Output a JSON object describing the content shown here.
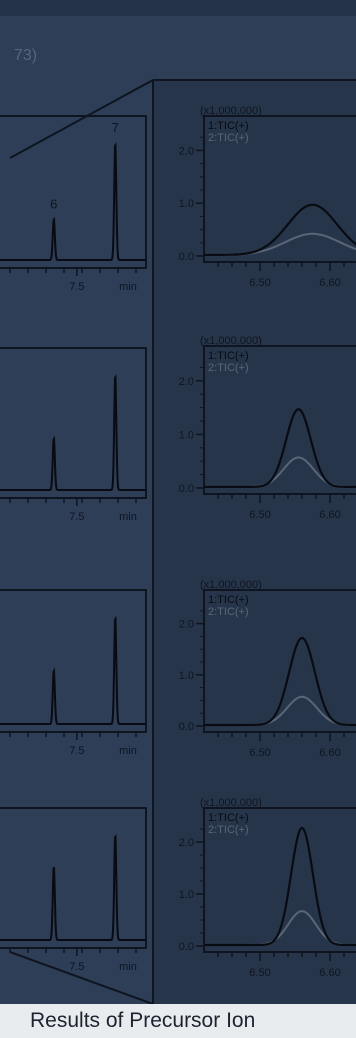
{
  "header_fragment": "73)",
  "caption": "Results of Precursor Ion",
  "colors": {
    "background": "#2e3e57",
    "band": "#27354b",
    "frame": "#0e1520",
    "trace_primary": "#080c12",
    "trace_secondary": "#5a6678",
    "caption_bg": "#e9ecef"
  },
  "chart_data": [
    {
      "type": "line",
      "panel": "overview-1",
      "x_ticks": [
        "7.5"
      ],
      "x_unit": "min",
      "peak_labels": [
        "6",
        "7"
      ],
      "series": [
        {
          "x": [
            7.35,
            7.75
          ],
          "y": [
            0.35,
            1.0
          ]
        }
      ]
    },
    {
      "type": "line",
      "panel": "overview-2",
      "x_ticks": [
        "7.5"
      ],
      "x_unit": "min",
      "series": [
        {
          "x": [
            7.35,
            7.75
          ],
          "y": [
            0.45,
            1.0
          ]
        }
      ]
    },
    {
      "type": "line",
      "panel": "overview-3",
      "x_ticks": [
        "7.5"
      ],
      "x_unit": "min",
      "series": [
        {
          "x": [
            7.35,
            7.75
          ],
          "y": [
            0.5,
            1.0
          ]
        }
      ]
    },
    {
      "type": "line",
      "panel": "overview-4",
      "x_ticks": [
        "7.5"
      ],
      "x_unit": "min",
      "series": [
        {
          "x": [
            7.35,
            7.75
          ],
          "y": [
            0.7,
            1.0
          ]
        }
      ]
    },
    {
      "type": "line",
      "panel": "zoom-1",
      "multiplier": "(x1,000,000)",
      "y_ticks": [
        "2.0",
        "1.0",
        "0.0"
      ],
      "x_ticks": [
        "6.50",
        "6.60"
      ],
      "ylim": [
        0,
        2.5
      ],
      "legend": [
        "1:TIC(+)",
        "2:TIC(+)"
      ],
      "series": [
        {
          "name": "1:TIC(+)",
          "center": 6.575,
          "height": 0.95,
          "width": 0.05
        },
        {
          "name": "2:TIC(+)",
          "center": 6.575,
          "height": 0.4,
          "width": 0.055
        }
      ]
    },
    {
      "type": "line",
      "panel": "zoom-2",
      "multiplier": "(x1,000,000)",
      "y_ticks": [
        "2.0",
        "1.0",
        "0.0"
      ],
      "x_ticks": [
        "6.50",
        "6.60"
      ],
      "ylim": [
        0,
        2.5
      ],
      "legend": [
        "1:TIC(+)",
        "2:TIC(+)"
      ],
      "series": [
        {
          "name": "1:TIC(+)",
          "center": 6.555,
          "height": 1.45,
          "width": 0.025
        },
        {
          "name": "2:TIC(+)",
          "center": 6.555,
          "height": 0.55,
          "width": 0.03
        }
      ]
    },
    {
      "type": "line",
      "panel": "zoom-3",
      "multiplier": "(x1,000,000)",
      "y_ticks": [
        "2.0",
        "1.0",
        "0.0"
      ],
      "x_ticks": [
        "6.50",
        "6.60"
      ],
      "ylim": [
        0,
        2.5
      ],
      "legend": [
        "1:TIC(+)",
        "2:TIC(+)"
      ],
      "series": [
        {
          "name": "1:TIC(+)",
          "center": 6.56,
          "height": 1.7,
          "width": 0.026
        },
        {
          "name": "2:TIC(+)",
          "center": 6.56,
          "height": 0.55,
          "width": 0.03
        }
      ]
    },
    {
      "type": "line",
      "panel": "zoom-4",
      "multiplier": "(x1,000,000)",
      "y_ticks": [
        "2.0",
        "1.0",
        "0.0"
      ],
      "x_ticks": [
        "6.50",
        "6.60"
      ],
      "ylim": [
        0,
        2.5
      ],
      "legend": [
        "1:TIC(+)",
        "2:TIC(+)"
      ],
      "series": [
        {
          "name": "1:TIC(+)",
          "center": 6.56,
          "height": 2.25,
          "width": 0.022
        },
        {
          "name": "2:TIC(+)",
          "center": 6.56,
          "height": 0.65,
          "width": 0.028
        }
      ]
    }
  ]
}
